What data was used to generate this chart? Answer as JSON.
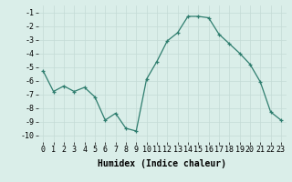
{
  "x": [
    0,
    1,
    2,
    3,
    4,
    5,
    6,
    7,
    8,
    9,
    10,
    11,
    12,
    13,
    14,
    15,
    16,
    17,
    18,
    19,
    20,
    21,
    22,
    23
  ],
  "y": [
    -5.3,
    -6.8,
    -6.4,
    -6.8,
    -6.5,
    -7.2,
    -8.9,
    -8.4,
    -9.5,
    -9.7,
    -5.9,
    -4.6,
    -3.1,
    -2.5,
    -1.3,
    -1.3,
    -1.4,
    -2.6,
    -3.3,
    -4.0,
    -4.8,
    -6.1,
    -8.3,
    -8.9
  ],
  "xlabel": "Humidex (Indice chaleur)",
  "ylim": [
    -10.5,
    -0.5
  ],
  "xlim": [
    -0.5,
    23.5
  ],
  "yticks": [
    -1,
    -2,
    -3,
    -4,
    -5,
    -6,
    -7,
    -8,
    -9,
    -10
  ],
  "xticks": [
    0,
    1,
    2,
    3,
    4,
    5,
    6,
    7,
    8,
    9,
    10,
    11,
    12,
    13,
    14,
    15,
    16,
    17,
    18,
    19,
    20,
    21,
    22,
    23
  ],
  "line_color": "#2e7d6e",
  "marker_color": "#2e7d6e",
  "bg_color": "#daeee9",
  "grid_color": "#c4dbd6",
  "xlabel_fontsize": 7,
  "tick_fontsize": 6
}
